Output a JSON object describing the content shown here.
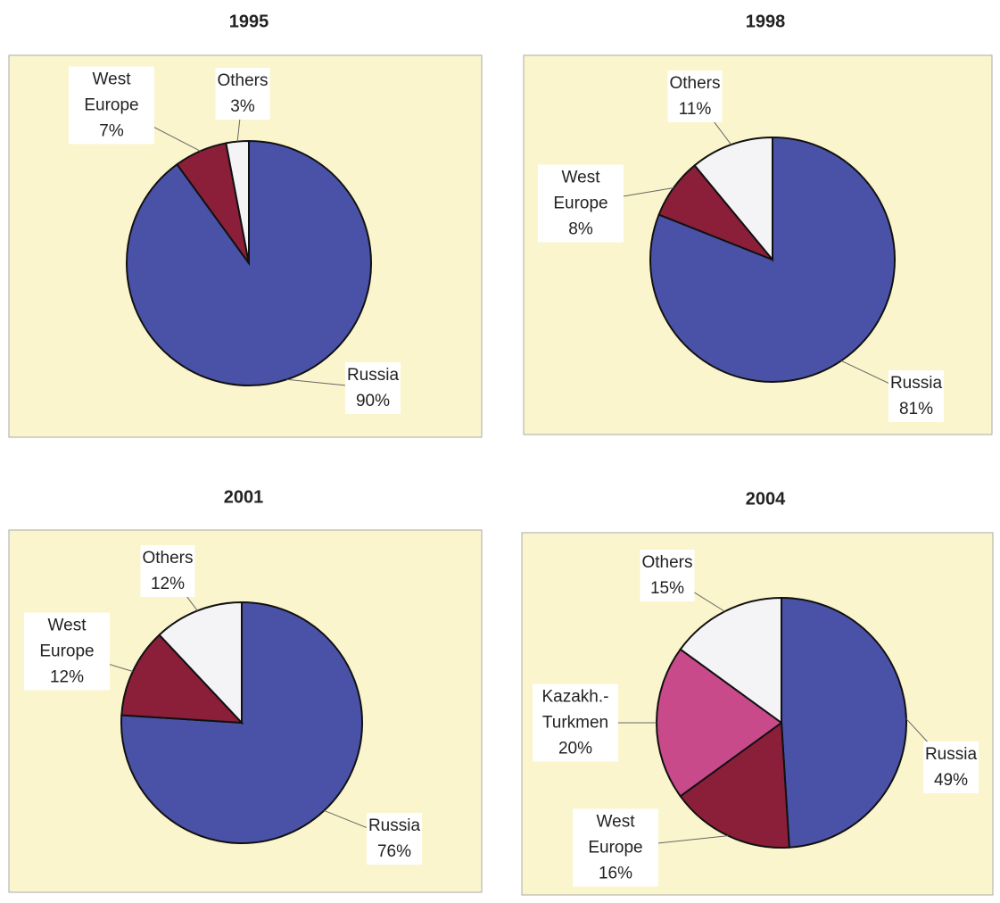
{
  "chart_data": [
    {
      "type": "pie",
      "title": "1995",
      "categories": [
        "Russia",
        "West Europe",
        "Others"
      ],
      "values": [
        90,
        7,
        3
      ],
      "value_labels": [
        "90%",
        "7%",
        "3%"
      ],
      "colors": [
        "#4a52a8",
        "#8b1f3a",
        "#f4f4f6"
      ]
    },
    {
      "type": "pie",
      "title": "1998",
      "categories": [
        "Russia",
        "West Europe",
        "Others"
      ],
      "values": [
        81,
        8,
        11
      ],
      "value_labels": [
        "81%",
        "8%",
        "11%"
      ],
      "colors": [
        "#4a52a8",
        "#8b1f3a",
        "#f4f4f6"
      ]
    },
    {
      "type": "pie",
      "title": "2001",
      "categories": [
        "Russia",
        "West Europe",
        "Others"
      ],
      "values": [
        76,
        12,
        12
      ],
      "value_labels": [
        "76%",
        "12%",
        "12%"
      ],
      "colors": [
        "#4a52a8",
        "#8b1f3a",
        "#f4f4f6"
      ]
    },
    {
      "type": "pie",
      "title": "2004",
      "categories": [
        "Russia",
        "West Europe",
        "Kazakh.-Turkmen",
        "Others"
      ],
      "values": [
        49,
        16,
        20,
        15
      ],
      "value_labels": [
        "49%",
        "16%",
        "20%",
        "15%"
      ],
      "colors": [
        "#4a52a8",
        "#8b1f3a",
        "#c84a8a",
        "#f4f4f6"
      ]
    }
  ]
}
